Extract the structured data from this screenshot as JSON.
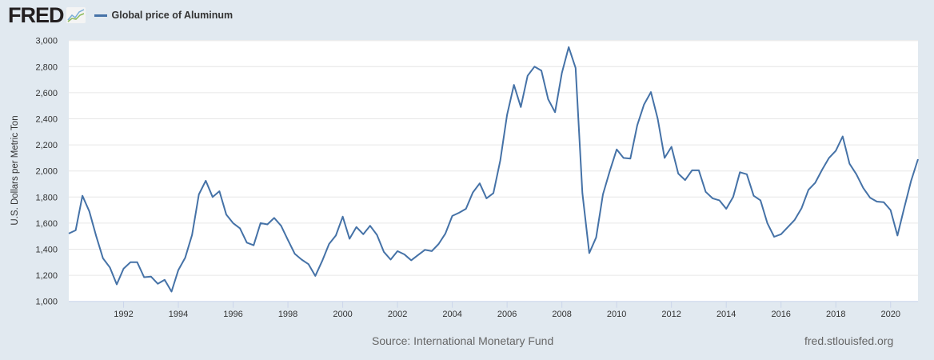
{
  "header": {
    "logo": "FRED",
    "legend": "Global price of Aluminum",
    "series_color": "#4572a7"
  },
  "footer": {
    "source": "Source: International Monetary Fund",
    "site": "fred.stlouisfed.org"
  },
  "chart_data": {
    "type": "line",
    "title": "Global price of Aluminum",
    "ylabel": "U.S. Dollars per Metric Ton",
    "xlabel": "",
    "ylim": [
      1000,
      3000
    ],
    "xlim": [
      1990,
      2021
    ],
    "yticks": [
      "1,000",
      "1,200",
      "1,400",
      "1,600",
      "1,800",
      "2,000",
      "2,200",
      "2,400",
      "2,600",
      "2,800",
      "3,000"
    ],
    "xticks": [
      "1992",
      "1994",
      "1996",
      "1998",
      "2000",
      "2002",
      "2004",
      "2006",
      "2008",
      "2010",
      "2012",
      "2014",
      "2016",
      "2018",
      "2020"
    ],
    "frequency": "quarterly",
    "start": 1990,
    "series": [
      {
        "name": "Global price of Aluminum",
        "values": [
          1520,
          1545,
          1810,
          1690,
          1500,
          1330,
          1260,
          1130,
          1250,
          1300,
          1300,
          1185,
          1190,
          1135,
          1165,
          1075,
          1240,
          1335,
          1510,
          1820,
          1925,
          1800,
          1845,
          1665,
          1600,
          1560,
          1450,
          1430,
          1600,
          1590,
          1640,
          1580,
          1470,
          1365,
          1320,
          1285,
          1195,
          1310,
          1440,
          1505,
          1650,
          1480,
          1570,
          1515,
          1580,
          1510,
          1380,
          1320,
          1385,
          1360,
          1315,
          1355,
          1395,
          1385,
          1440,
          1520,
          1655,
          1680,
          1710,
          1835,
          1905,
          1790,
          1830,
          2080,
          2430,
          2660,
          2490,
          2730,
          2800,
          2770,
          2550,
          2450,
          2750,
          2950,
          2790,
          1830,
          1370,
          1490,
          1820,
          2000,
          2165,
          2100,
          2095,
          2350,
          2510,
          2605,
          2400,
          2100,
          2185,
          1980,
          1930,
          2005,
          2005,
          1840,
          1790,
          1775,
          1710,
          1800,
          1990,
          1975,
          1810,
          1775,
          1600,
          1495,
          1515,
          1570,
          1625,
          1715,
          1855,
          1910,
          2010,
          2100,
          2155,
          2265,
          2055,
          1975,
          1870,
          1795,
          1765,
          1760,
          1700,
          1505,
          1720,
          1925,
          2090
        ]
      }
    ]
  }
}
